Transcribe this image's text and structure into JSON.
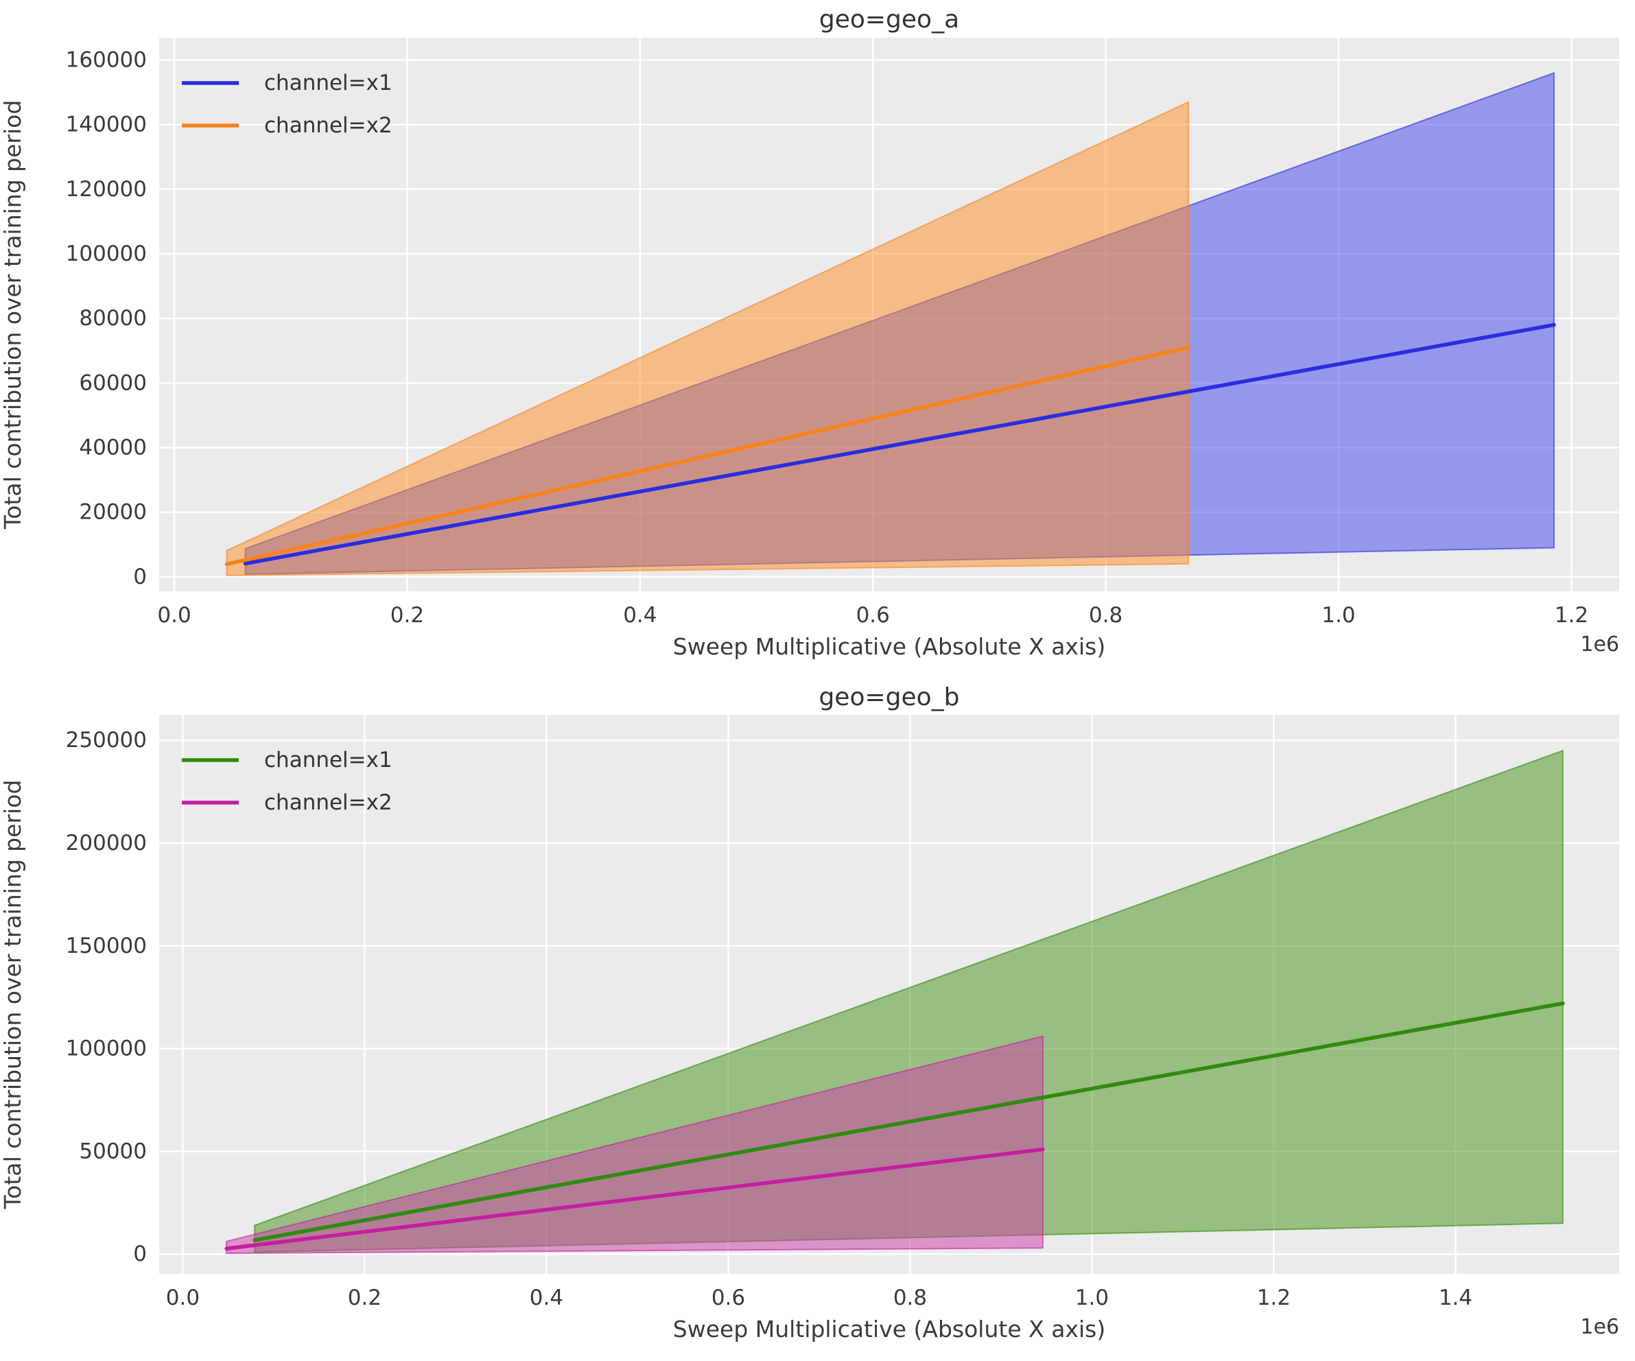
{
  "figure": {
    "background": "#ffffff",
    "plot_background": "#ebebeb",
    "grid_color": "#ffffff",
    "text_color": "#3a3a3a",
    "title_color": "#333333"
  },
  "chart_data": [
    {
      "type": "line",
      "title": "geo=geo_a",
      "xlabel": "Sweep Multiplicative (Absolute X axis)",
      "ylabel": "Total contribution over training period",
      "x_offset_label": "1e6",
      "grid": true,
      "legend_position": "upper left",
      "xlim": [
        -13000,
        1241000
      ],
      "ylim": [
        -4500,
        166900
      ],
      "x_ticks": {
        "values": [
          0,
          200000,
          400000,
          600000,
          800000,
          1000000,
          1200000
        ],
        "labels": [
          "0.0",
          "0.2",
          "0.4",
          "0.6",
          "0.8",
          "1.0",
          "1.2"
        ]
      },
      "y_ticks": {
        "values": [
          0,
          20000,
          40000,
          60000,
          80000,
          100000,
          120000,
          140000,
          160000
        ],
        "labels": [
          "0",
          "20000",
          "40000",
          "60000",
          "80000",
          "100000",
          "120000",
          "140000",
          "160000"
        ]
      },
      "series": [
        {
          "name": "channel=x1",
          "line_color": "#2a2cdf",
          "band_fill": "rgba(45,48,235,0.45)",
          "x": [
            61000,
            1185000
          ],
          "y": [
            4100,
            78000
          ],
          "band_lower": [
            800,
            9000
          ],
          "band_upper": [
            8700,
            156000
          ]
        },
        {
          "name": "channel=x2",
          "line_color": "#f8821c",
          "band_fill": "rgba(255,141,35,0.5)",
          "x": [
            45000,
            871000
          ],
          "y": [
            3900,
            71000
          ],
          "band_lower": [
            400,
            4000
          ],
          "band_upper": [
            8100,
            147000
          ]
        }
      ]
    },
    {
      "type": "line",
      "title": "geo=geo_b",
      "xlabel": "Sweep Multiplicative (Absolute X axis)",
      "ylabel": "Total contribution over training period",
      "x_offset_label": "1e6",
      "grid": true,
      "legend_position": "upper left",
      "xlim": [
        -26000,
        1580000
      ],
      "ylim": [
        -9600,
        262400
      ],
      "x_ticks": {
        "values": [
          0,
          200000,
          400000,
          600000,
          800000,
          1000000,
          1200000,
          1400000
        ],
        "labels": [
          "0.0",
          "0.2",
          "0.4",
          "0.6",
          "0.8",
          "1.0",
          "1.2",
          "1.4"
        ]
      },
      "y_ticks": {
        "values": [
          0,
          50000,
          100000,
          150000,
          200000,
          250000
        ],
        "labels": [
          "0",
          "50000",
          "100000",
          "150000",
          "200000",
          "250000"
        ]
      },
      "series": [
        {
          "name": "channel=x1",
          "line_color": "#2e8b0e",
          "band_fill": "rgba(70,145,25,0.5)",
          "x": [
            79000,
            1518000
          ],
          "y": [
            6800,
            122000
          ],
          "band_lower": [
            1000,
            15000
          ],
          "band_upper": [
            14000,
            245000
          ]
        },
        {
          "name": "channel=x2",
          "line_color": "#c41e9f",
          "band_fill": "rgba(206,60,170,0.5)",
          "x": [
            48000,
            946000
          ],
          "y": [
            2700,
            51000
          ],
          "band_lower": [
            400,
            3000
          ],
          "band_upper": [
            6200,
            106000
          ]
        }
      ]
    }
  ]
}
